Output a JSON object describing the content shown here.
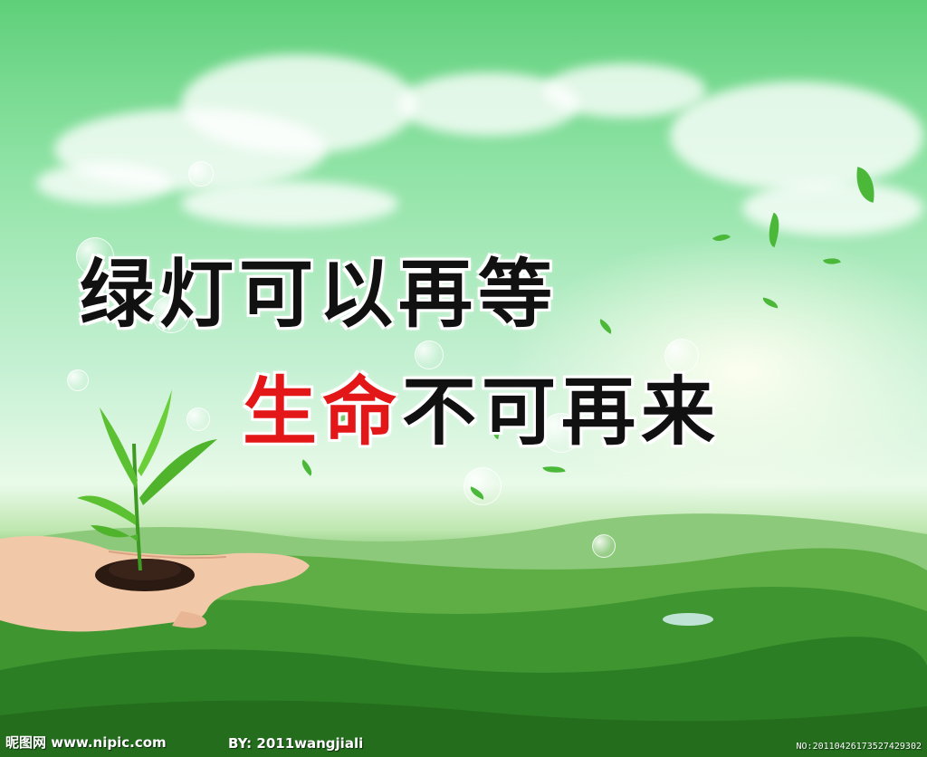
{
  "slogan": {
    "line1": "绿灯可以再等",
    "line2_red": "生命",
    "line2_black": "不可再来"
  },
  "watermark": {
    "site": "昵图网 www.nipic.com",
    "author": "BY: 2011wangjiali",
    "number": "NO:20110426173527429302"
  },
  "colors": {
    "sky": "#7fdc96",
    "slogan_black": "#111111",
    "slogan_red": "#e31717",
    "hills": "#2f8d2a"
  }
}
